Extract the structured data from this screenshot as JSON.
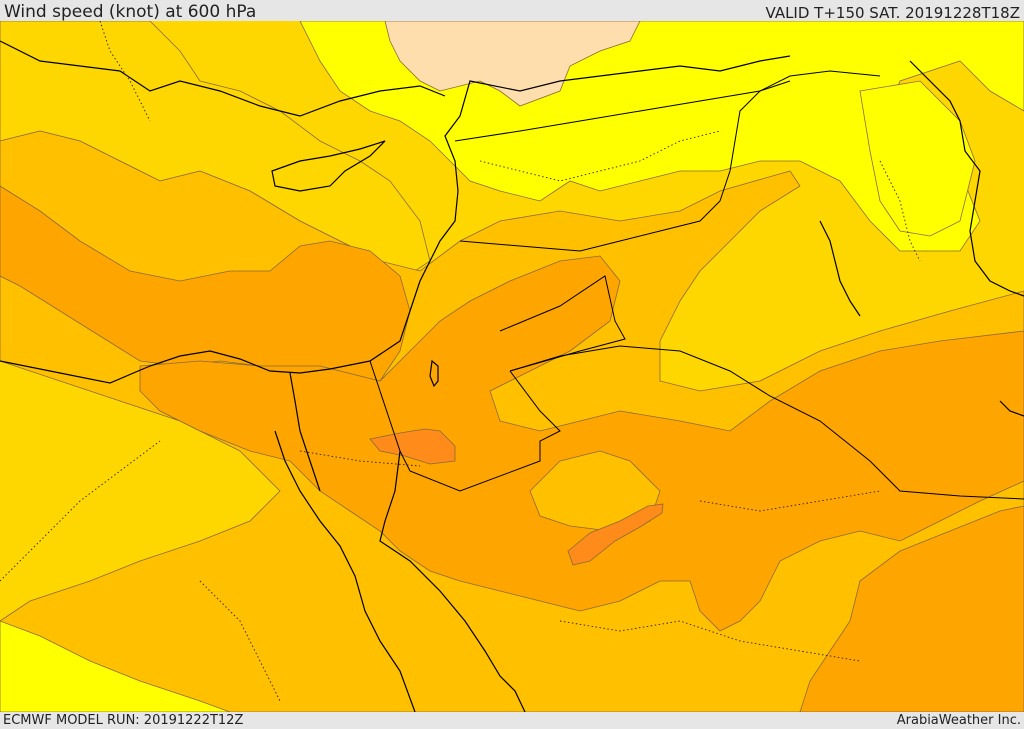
{
  "header": {
    "title": "Wind speed (knot) at 600 hPa",
    "valid": "VALID T+150 SAT. 20191228T18Z"
  },
  "footer": {
    "model_run": "ECMWF MODEL RUN: 20191222T12Z",
    "credit": "ArabiaWeather Inc."
  },
  "colors": {
    "level_0": "#ffdead",
    "level_1": "#ffff00",
    "level_2": "#ffd700",
    "level_3": "#ffc000",
    "level_4": "#ffa500",
    "level_5": "#ff8c1a",
    "contour_line": "#8a6a3a",
    "coastline": "#000000",
    "border": "#000000"
  }
}
